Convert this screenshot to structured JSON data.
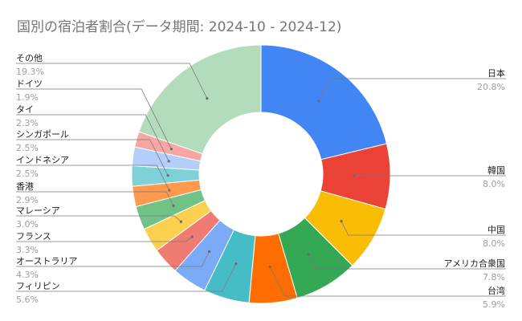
{
  "chart_data": {
    "type": "pie",
    "variant": "donut",
    "title": "国別の宿泊者割合(データ期間: 2024-10 - 2024-12)",
    "legend": "none",
    "slices": [
      {
        "label": "日本",
        "pct_text": "20.8%",
        "value": 20.8,
        "color": "#4285f4",
        "side": "right"
      },
      {
        "label": "韓国",
        "pct_text": "8.0%",
        "value": 8.0,
        "color": "#ea4335",
        "side": "right"
      },
      {
        "label": "中国",
        "pct_text": "8.0%",
        "value": 8.0,
        "color": "#fbbc04",
        "side": "right"
      },
      {
        "label": "アメリカ合衆国",
        "pct_text": "7.8%",
        "value": 7.8,
        "color": "#34a853",
        "side": "right"
      },
      {
        "label": "台湾",
        "pct_text": "5.9%",
        "value": 5.9,
        "color": "#ff6d01",
        "side": "right"
      },
      {
        "label": "フィリピン",
        "pct_text": "5.6%",
        "value": 5.6,
        "color": "#46bdc6",
        "side": "left"
      },
      {
        "label": "オーストラリア",
        "pct_text": "4.3%",
        "value": 4.3,
        "color": "#7baaf7",
        "side": "left"
      },
      {
        "label": "フランス",
        "pct_text": "3.3%",
        "value": 3.3,
        "color": "#f07b72",
        "side": "left"
      },
      {
        "label": "マレーシア",
        "pct_text": "3.0%",
        "value": 3.0,
        "color": "#fcd04f",
        "side": "left"
      },
      {
        "label": "香港",
        "pct_text": "2.9%",
        "value": 2.9,
        "color": "#71c287",
        "side": "left"
      },
      {
        "label": "インドネシア",
        "pct_text": "2.5%",
        "value": 2.5,
        "color": "#ff994d",
        "side": "left"
      },
      {
        "label": "シンガポール",
        "pct_text": "2.5%",
        "value": 2.5,
        "color": "#7ed1d7",
        "side": "left"
      },
      {
        "label": "タイ",
        "pct_text": "2.3%",
        "value": 2.3,
        "color": "#b3cefb",
        "side": "left"
      },
      {
        "label": "ドイツ",
        "pct_text": "1.9%",
        "value": 1.9,
        "color": "#f7a7a1",
        "side": "left"
      },
      {
        "label": "その他",
        "pct_text": "19.3%",
        "value": 19.3,
        "color": "#b2dcbc",
        "side": "left"
      }
    ]
  }
}
